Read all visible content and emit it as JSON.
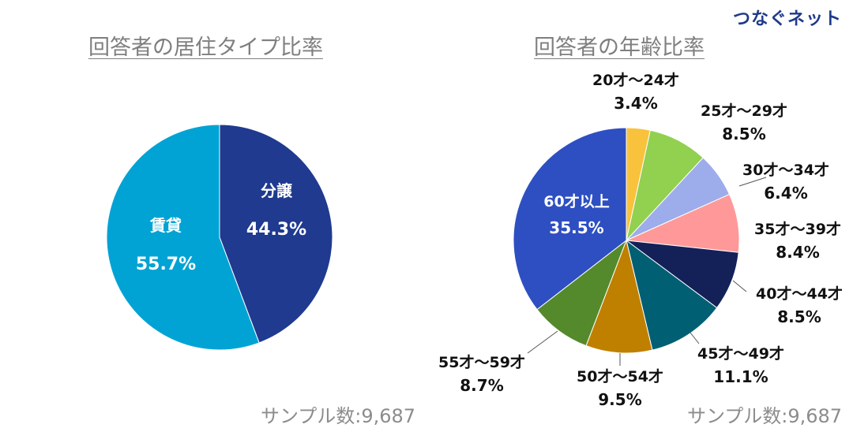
{
  "brand": "つなぐネット",
  "charts": [
    {
      "title": "回答者の居住タイプ比率",
      "sample": "サンプル数:9,687"
    },
    {
      "title": "回答者の年齢比率",
      "sample": "サンプル数:9,687"
    }
  ],
  "chart_data": [
    {
      "type": "pie",
      "title": "回答者の居住タイプ比率",
      "labels": [
        "分譲",
        "賃貸"
      ],
      "values": [
        44.3,
        55.7
      ],
      "value_labels": [
        "44.3%",
        "55.7%"
      ],
      "colors": [
        "#1f3a8f",
        "#00a3d4"
      ]
    },
    {
      "type": "pie",
      "title": "回答者の年齢比率",
      "labels": [
        "20才～24才",
        "25才～29才",
        "30才～34才",
        "35才～39才",
        "40才～44才",
        "45才～49才",
        "50才～54才",
        "55才～59才",
        "60才以上"
      ],
      "values": [
        3.4,
        8.5,
        6.4,
        8.4,
        8.5,
        11.1,
        9.5,
        8.7,
        35.5
      ],
      "value_labels": [
        "3.4%",
        "8.5%",
        "6.4%",
        "8.4%",
        "8.5%",
        "11.1%",
        "9.5%",
        "8.7%",
        "35.5%"
      ],
      "colors": [
        "#f9c23c",
        "#92d050",
        "#9dacea",
        "#ff9999",
        "#142158",
        "#005f73",
        "#bf8000",
        "#548a2b",
        "#2e4fc2"
      ]
    }
  ]
}
